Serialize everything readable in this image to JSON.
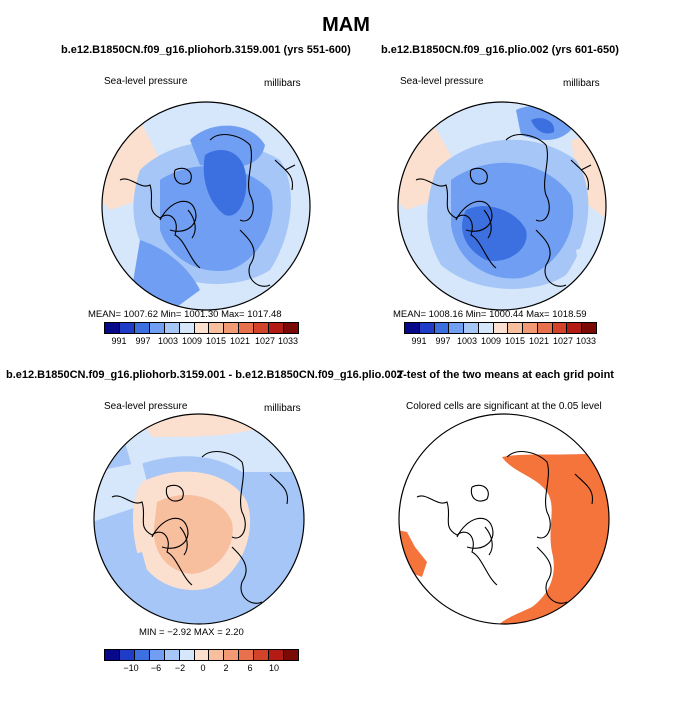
{
  "title": "MAM",
  "panels": [
    {
      "title": "b.e12.B1850CN.f09_g16.pliohorb.3159.001 (yrs 551-600)",
      "left_label": "Sea-level pressure",
      "right_label": "millibars",
      "stats": "MEAN=  1007.62   Min=  1001.30   Max=  1017.48",
      "colorbar_ticks": [
        "991",
        "997",
        "1003",
        "1009",
        "1015",
        "1021",
        "1027",
        "1033"
      ]
    },
    {
      "title": "b.e12.B1850CN.f09_g16.plio.002 (yrs 601-650)",
      "left_label": "Sea-level pressure",
      "right_label": "millibars",
      "stats": "MEAN=  1008.16   Min=  1000.44   Max=  1018.59",
      "colorbar_ticks": [
        "991",
        "997",
        "1003",
        "1009",
        "1015",
        "1021",
        "1027",
        "1033"
      ]
    },
    {
      "title": "b.e12.B1850CN.f09_g16.pliohorb.3159.001 - b.e12.B1850CN.f09_g16.plio.002",
      "left_label": "Sea-level pressure",
      "right_label": "millibars",
      "stats": "MIN  =   −2.92  MAX  =     2.20",
      "colorbar_ticks": [
        "−10",
        "−6",
        "−2",
        "0",
        "2",
        "6",
        "10"
      ]
    },
    {
      "title": "T-test of the two means at each grid point",
      "left_label": "Colored cells are significant at the 0.05 level"
    }
  ],
  "colors": {
    "scale": [
      "#08088a",
      "#1f3cc8",
      "#3c6fe0",
      "#6f9ef2",
      "#a5c6f7",
      "#d6e6fb",
      "#fbe0d0",
      "#f8bf9f",
      "#f29a73",
      "#e8704c",
      "#d2432a",
      "#b31c14",
      "#7a0a06"
    ],
    "signif": "#f4743c"
  }
}
